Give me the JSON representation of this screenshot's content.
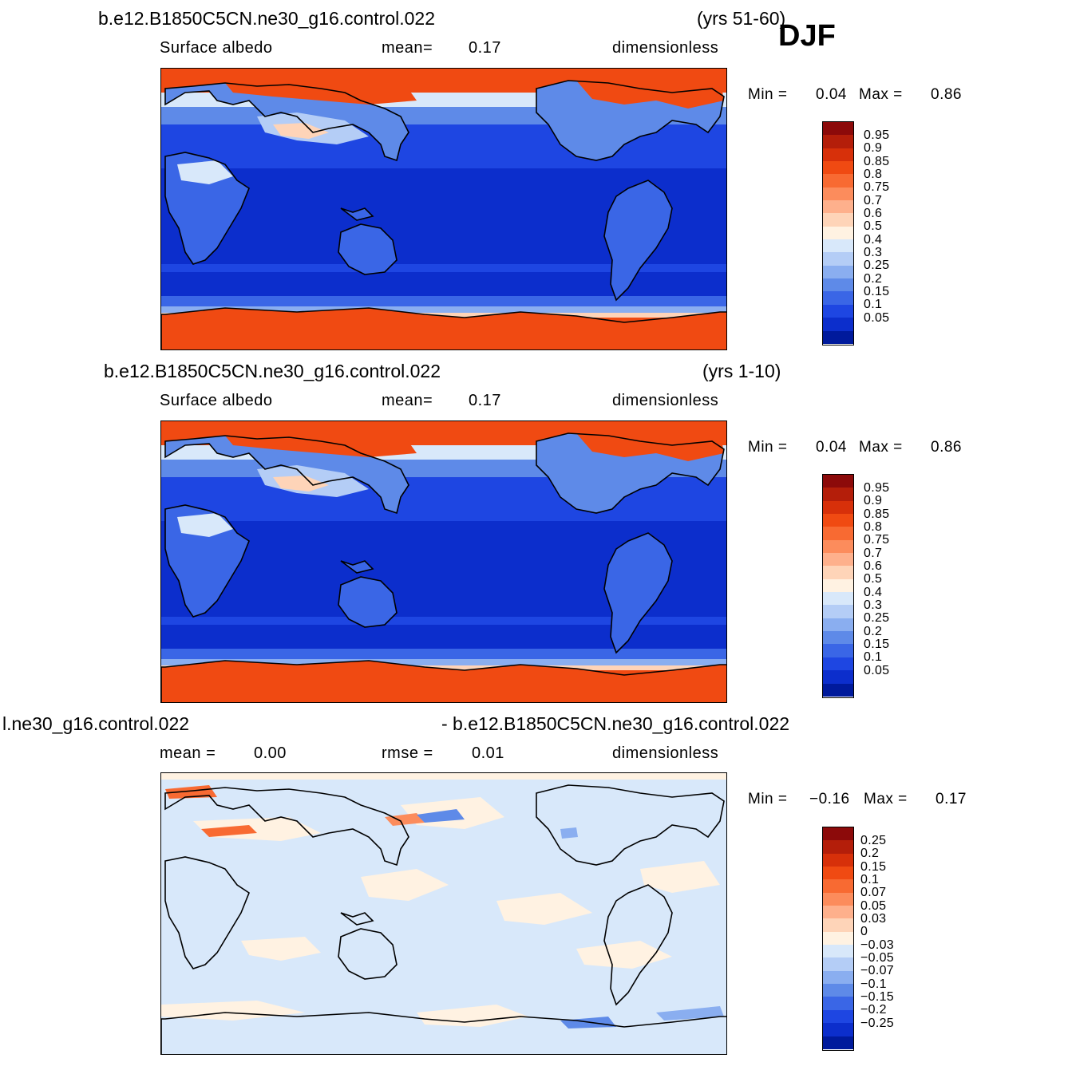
{
  "season": "DJF",
  "panels": [
    {
      "case_title": "b.e12.B1850C5CN.ne30_g16.control.022",
      "years": "(yrs 51-60)",
      "variable": "Surface  albedo",
      "stat1_label": "mean=",
      "stat1_value": "0.17",
      "stat2_label": "",
      "stat2_value": "",
      "units": "dimensionless",
      "min_label": "Min  =",
      "min_value": "0.04",
      "max_label": "Max  =",
      "max_value": "0.86",
      "levels": [
        "0.95",
        "0.9",
        "0.85",
        "0.8",
        "0.75",
        "0.7",
        "0.6",
        "0.5",
        "0.4",
        "0.3",
        "0.25",
        "0.2",
        "0.15",
        "0.1",
        "0.05"
      ],
      "colors": [
        "#8c0a0a",
        "#b41e0a",
        "#d7300a",
        "#f04a12",
        "#f86a32",
        "#fc8c5c",
        "#feb08c",
        "#fed4b8",
        "#fff2e2",
        "#d8e8fa",
        "#b4cdf6",
        "#8aaef0",
        "#5e8ae8",
        "#3a66e6",
        "#1e46e2",
        "#0c2ecc",
        "#001a9c"
      ],
      "kind": "abs"
    },
    {
      "case_title": "b.e12.B1850C5CN.ne30_g16.control.022",
      "years": "(yrs 1-10)",
      "variable": "Surface  albedo",
      "stat1_label": "mean=",
      "stat1_value": "0.17",
      "stat2_label": "",
      "stat2_value": "",
      "units": "dimensionless",
      "min_label": "Min  =",
      "min_value": "0.04",
      "max_label": "Max  =",
      "max_value": "0.86",
      "levels": [
        "0.95",
        "0.9",
        "0.85",
        "0.8",
        "0.75",
        "0.7",
        "0.6",
        "0.5",
        "0.4",
        "0.3",
        "0.25",
        "0.2",
        "0.15",
        "0.1",
        "0.05"
      ],
      "colors": [
        "#8c0a0a",
        "#b41e0a",
        "#d7300a",
        "#f04a12",
        "#f86a32",
        "#fc8c5c",
        "#feb08c",
        "#fed4b8",
        "#fff2e2",
        "#d8e8fa",
        "#b4cdf6",
        "#8aaef0",
        "#5e8ae8",
        "#3a66e6",
        "#1e46e2",
        "#0c2ecc",
        "#001a9c"
      ],
      "kind": "abs"
    },
    {
      "case_title": "l.ne30_g16.control.022",
      "years": "- b.e12.B1850C5CN.ne30_g16.control.022",
      "variable": "mean  =",
      "stat1_label": "",
      "stat1_value": "0.00",
      "stat2_label": "rmse  =",
      "stat2_value": "0.01",
      "units": "dimensionless",
      "min_label": "Min  =",
      "min_value": "−0.16",
      "max_label": "Max  =",
      "max_value": "0.17",
      "levels": [
        "0.25",
        "0.2",
        "0.15",
        "0.1",
        "0.07",
        "0.05",
        "0.03",
        "0",
        "−0.03",
        "−0.05",
        "−0.07",
        "−0.1",
        "−0.15",
        "−0.2",
        "−0.25"
      ],
      "colors": [
        "#8c0a0a",
        "#b41e0a",
        "#d7300a",
        "#f04a12",
        "#f86a32",
        "#fc8c5c",
        "#feb08c",
        "#fed4b8",
        "#fff2e2",
        "#d8e8fa",
        "#b4cdf6",
        "#8aaef0",
        "#5e8ae8",
        "#3a66e6",
        "#1e46e2",
        "#0c2ecc",
        "#001a9c"
      ],
      "kind": "diff"
    }
  ]
}
